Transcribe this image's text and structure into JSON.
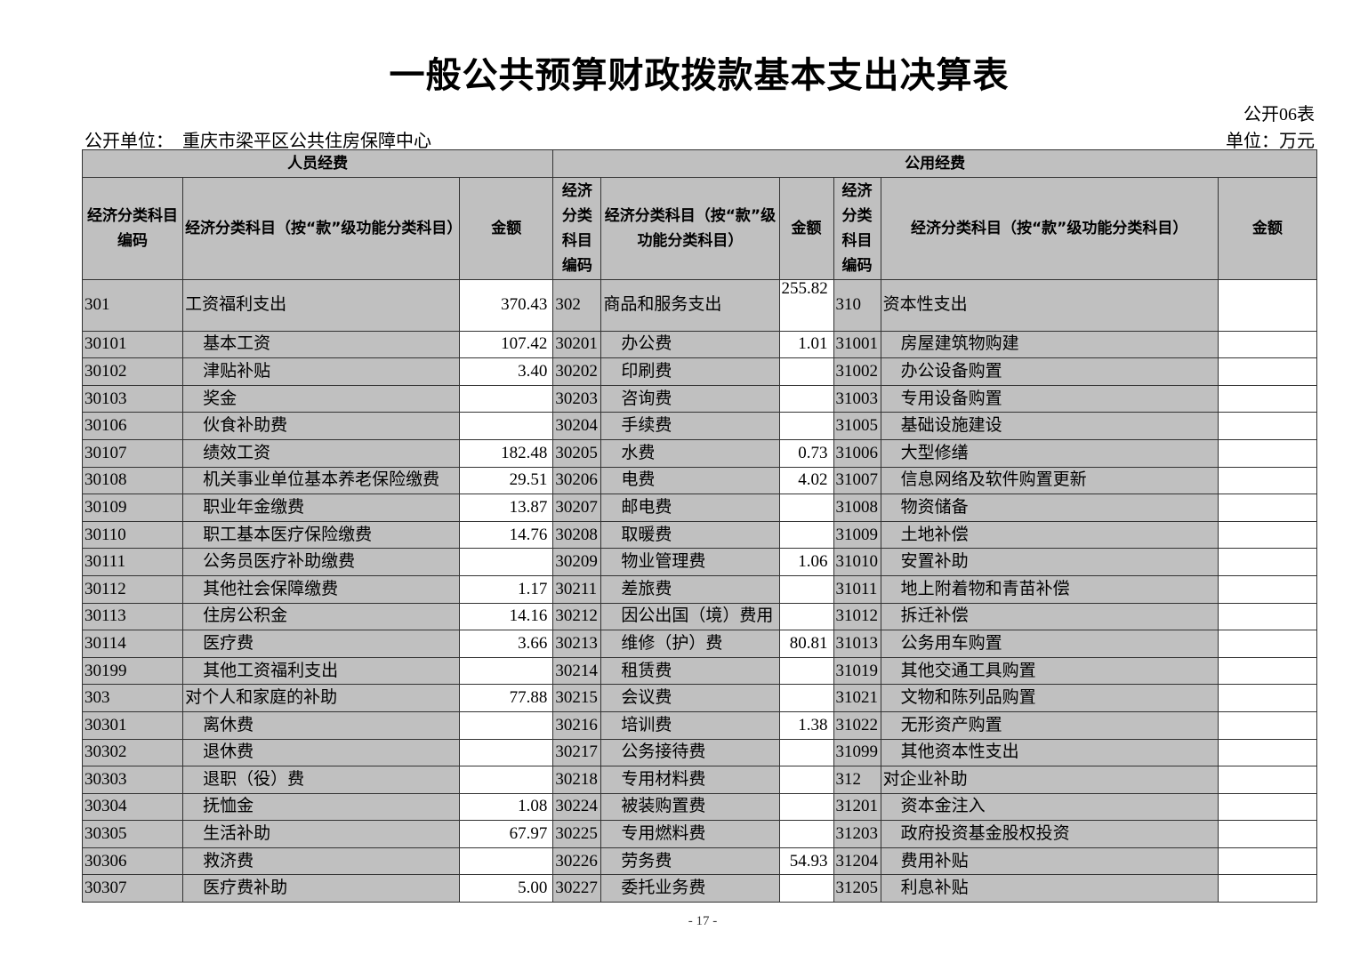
{
  "title": "一般公共预算财政拨款基本支出决算表",
  "form_no": "公开06表",
  "unit_label": "公开单位：",
  "unit_name": "重庆市梁平区公共住房保障中心",
  "currency": "单位：万元",
  "headers": {
    "group1": "人员经费",
    "group2": "公用经费",
    "code1": "经济分类科目编码",
    "name1": "经济分类科目（按“款”级功能分类科目）",
    "amt": "金额",
    "code2": "经济分类科目编码",
    "name2": "经济分类科目（按“款”级功能分类科目）",
    "code3": "经济分类科目编码",
    "name3": "经济分类科目（按“款”级功能分类科目）"
  },
  "rows": [
    [
      "301",
      "工资福利支出",
      "370.43",
      "302",
      "商品和服务支出",
      "255.82",
      "310",
      "资本性支出",
      ""
    ],
    [
      "30101",
      "基本工资",
      "107.42",
      "30201",
      "办公费",
      "1.01",
      "31001",
      "房屋建筑物购建",
      ""
    ],
    [
      "30102",
      "津贴补贴",
      "3.40",
      "30202",
      "印刷费",
      "",
      "31002",
      "办公设备购置",
      ""
    ],
    [
      "30103",
      "奖金",
      "",
      "30203",
      "咨询费",
      "",
      "31003",
      "专用设备购置",
      ""
    ],
    [
      "30106",
      "伙食补助费",
      "",
      "30204",
      "手续费",
      "",
      "31005",
      "基础设施建设",
      ""
    ],
    [
      "30107",
      "绩效工资",
      "182.48",
      "30205",
      "水费",
      "0.73",
      "31006",
      "大型修缮",
      ""
    ],
    [
      "30108",
      "机关事业单位基本养老保险缴费",
      "29.51",
      "30206",
      "电费",
      "4.02",
      "31007",
      "信息网络及软件购置更新",
      ""
    ],
    [
      "30109",
      "职业年金缴费",
      "13.87",
      "30207",
      "邮电费",
      "",
      "31008",
      "物资储备",
      ""
    ],
    [
      "30110",
      "职工基本医疗保险缴费",
      "14.76",
      "30208",
      "取暖费",
      "",
      "31009",
      "土地补偿",
      ""
    ],
    [
      "30111",
      "公务员医疗补助缴费",
      "",
      "30209",
      "物业管理费",
      "1.06",
      "31010",
      "安置补助",
      ""
    ],
    [
      "30112",
      "其他社会保障缴费",
      "1.17",
      "30211",
      "差旅费",
      "",
      "31011",
      "地上附着物和青苗补偿",
      ""
    ],
    [
      "30113",
      "住房公积金",
      "14.16",
      "30212",
      "因公出国（境）费用",
      "",
      "31012",
      "拆迁补偿",
      ""
    ],
    [
      "30114",
      "医疗费",
      "3.66",
      "30213",
      "维修（护）费",
      "80.81",
      "31013",
      "公务用车购置",
      ""
    ],
    [
      "30199",
      "其他工资福利支出",
      "",
      "30214",
      "租赁费",
      "",
      "31019",
      "其他交通工具购置",
      ""
    ],
    [
      "303",
      "对个人和家庭的补助",
      "77.88",
      "30215",
      "会议费",
      "",
      "31021",
      "文物和陈列品购置",
      ""
    ],
    [
      "30301",
      "离休费",
      "",
      "30216",
      "培训费",
      "1.38",
      "31022",
      "无形资产购置",
      ""
    ],
    [
      "30302",
      "退休费",
      "",
      "30217",
      "公务接待费",
      "",
      "31099",
      "其他资本性支出",
      ""
    ],
    [
      "30303",
      "退职（役）费",
      "",
      "30218",
      "专用材料费",
      "",
      "312",
      "对企业补助",
      ""
    ],
    [
      "30304",
      "抚恤金",
      "1.08",
      "30224",
      "被装购置费",
      "",
      "31201",
      "资本金注入",
      ""
    ],
    [
      "30305",
      "生活补助",
      "67.97",
      "30225",
      "专用燃料费",
      "",
      "31203",
      "政府投资基金股权投资",
      ""
    ],
    [
      "30306",
      "救济费",
      "",
      "30226",
      "劳务费",
      "54.93",
      "31204",
      "费用补贴",
      ""
    ],
    [
      "30307",
      "医疗费补助",
      "5.00",
      "30227",
      "委托业务费",
      "",
      "31205",
      "利息补贴",
      ""
    ]
  ],
  "page_number": "- 17 -",
  "colors": {
    "cell_gray": "#c0c0c0",
    "amount_white": "#ffffff"
  }
}
